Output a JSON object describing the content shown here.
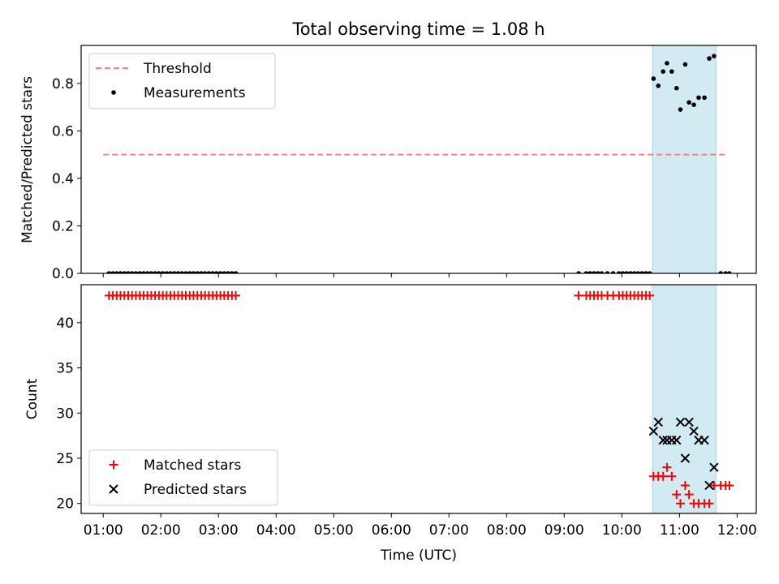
{
  "chart_data": [
    {
      "type": "scatter",
      "title": "Total observing time = 1.08 h",
      "ylabel": "Matched/Predicted stars",
      "xlabel": "",
      "xlim": [
        "00:37",
        "12:20"
      ],
      "ylim": [
        0,
        0.96
      ],
      "x_ticks": [
        "01:00",
        "02:00",
        "03:00",
        "04:00",
        "05:00",
        "06:00",
        "07:00",
        "08:00",
        "09:00",
        "10:00",
        "11:00",
        "12:00"
      ],
      "y_ticks": [
        "0.0",
        "0.2",
        "0.4",
        "0.6",
        "0.8"
      ],
      "highlight_span": [
        "10:32",
        "11:38"
      ],
      "legend": {
        "position": "upper left",
        "entries": [
          "Threshold",
          "Measurements"
        ]
      },
      "series": [
        {
          "name": "Threshold",
          "style": "dashed-line",
          "color": "#ff8080",
          "points": [
            [
              "01:00",
              0.5
            ],
            [
              "11:50",
              0.5
            ]
          ]
        },
        {
          "name": "Measurements",
          "style": "dot",
          "color": "#000000",
          "points": [
            [
              "01:06",
              0
            ],
            [
              "01:10",
              0
            ],
            [
              "01:14",
              0
            ],
            [
              "01:18",
              0
            ],
            [
              "01:22",
              0
            ],
            [
              "01:26",
              0
            ],
            [
              "01:30",
              0
            ],
            [
              "01:34",
              0
            ],
            [
              "01:38",
              0
            ],
            [
              "01:42",
              0
            ],
            [
              "01:46",
              0
            ],
            [
              "01:50",
              0
            ],
            [
              "01:54",
              0
            ],
            [
              "01:58",
              0
            ],
            [
              "02:02",
              0
            ],
            [
              "02:06",
              0
            ],
            [
              "02:10",
              0
            ],
            [
              "02:14",
              0
            ],
            [
              "02:18",
              0
            ],
            [
              "02:22",
              0
            ],
            [
              "02:26",
              0
            ],
            [
              "02:30",
              0
            ],
            [
              "02:34",
              0
            ],
            [
              "02:38",
              0
            ],
            [
              "02:42",
              0
            ],
            [
              "02:46",
              0
            ],
            [
              "02:50",
              0
            ],
            [
              "02:54",
              0
            ],
            [
              "02:58",
              0
            ],
            [
              "03:02",
              0
            ],
            [
              "03:06",
              0
            ],
            [
              "03:10",
              0
            ],
            [
              "03:14",
              0
            ],
            [
              "03:18",
              0
            ],
            [
              "09:15",
              0
            ],
            [
              "09:23",
              0
            ],
            [
              "09:27",
              0
            ],
            [
              "09:31",
              0
            ],
            [
              "09:35",
              0
            ],
            [
              "09:39",
              0
            ],
            [
              "09:45",
              0
            ],
            [
              "09:51",
              0
            ],
            [
              "09:57",
              0
            ],
            [
              "10:01",
              0
            ],
            [
              "10:05",
              0
            ],
            [
              "10:09",
              0
            ],
            [
              "10:13",
              0
            ],
            [
              "10:17",
              0
            ],
            [
              "10:21",
              0
            ],
            [
              "10:25",
              0
            ],
            [
              "10:29",
              0
            ],
            [
              "10:33",
              0.82
            ],
            [
              "10:38",
              0.79
            ],
            [
              "10:43",
              0.85
            ],
            [
              "10:47",
              0.885
            ],
            [
              "10:52",
              0.85
            ],
            [
              "10:57",
              0.78
            ],
            [
              "11:01",
              0.69
            ],
            [
              "11:06",
              0.88
            ],
            [
              "11:10",
              0.72
            ],
            [
              "11:15",
              0.71
            ],
            [
              "11:20",
              0.74
            ],
            [
              "11:26",
              0.74
            ],
            [
              "11:31",
              0.905
            ],
            [
              "11:36",
              0.915
            ],
            [
              "11:43",
              0
            ],
            [
              "11:48",
              0
            ],
            [
              "11:52",
              0
            ]
          ]
        }
      ]
    },
    {
      "type": "scatter",
      "title": "",
      "ylabel": "Count",
      "xlabel": "Time (UTC)",
      "xlim": [
        "00:37",
        "12:20"
      ],
      "ylim": [
        18.9,
        44.2
      ],
      "x_ticks": [
        "01:00",
        "02:00",
        "03:00",
        "04:00",
        "05:00",
        "06:00",
        "07:00",
        "08:00",
        "09:00",
        "10:00",
        "11:00",
        "12:00"
      ],
      "y_ticks": [
        "20",
        "25",
        "30",
        "35",
        "40"
      ],
      "highlight_span": [
        "10:32",
        "11:38"
      ],
      "legend": {
        "position": "lower left",
        "entries": [
          "Matched stars",
          "Predicted stars"
        ]
      },
      "series": [
        {
          "name": "Matched stars",
          "style": "plus",
          "color": "#ff0000",
          "points": [
            [
              "01:06",
              43
            ],
            [
              "01:10",
              43
            ],
            [
              "01:14",
              43
            ],
            [
              "01:18",
              43
            ],
            [
              "01:22",
              43
            ],
            [
              "01:26",
              43
            ],
            [
              "01:30",
              43
            ],
            [
              "01:34",
              43
            ],
            [
              "01:38",
              43
            ],
            [
              "01:42",
              43
            ],
            [
              "01:46",
              43
            ],
            [
              "01:50",
              43
            ],
            [
              "01:54",
              43
            ],
            [
              "01:58",
              43
            ],
            [
              "02:02",
              43
            ],
            [
              "02:06",
              43
            ],
            [
              "02:10",
              43
            ],
            [
              "02:14",
              43
            ],
            [
              "02:18",
              43
            ],
            [
              "02:22",
              43
            ],
            [
              "02:26",
              43
            ],
            [
              "02:30",
              43
            ],
            [
              "02:34",
              43
            ],
            [
              "02:38",
              43
            ],
            [
              "02:42",
              43
            ],
            [
              "02:46",
              43
            ],
            [
              "02:50",
              43
            ],
            [
              "02:54",
              43
            ],
            [
              "02:58",
              43
            ],
            [
              "03:02",
              43
            ],
            [
              "03:06",
              43
            ],
            [
              "03:10",
              43
            ],
            [
              "03:14",
              43
            ],
            [
              "03:18",
              43
            ],
            [
              "09:15",
              43
            ],
            [
              "09:23",
              43
            ],
            [
              "09:27",
              43
            ],
            [
              "09:31",
              43
            ],
            [
              "09:35",
              43
            ],
            [
              "09:39",
              43
            ],
            [
              "09:45",
              43
            ],
            [
              "09:51",
              43
            ],
            [
              "09:57",
              43
            ],
            [
              "10:01",
              43
            ],
            [
              "10:05",
              43
            ],
            [
              "10:09",
              43
            ],
            [
              "10:13",
              43
            ],
            [
              "10:17",
              43
            ],
            [
              "10:21",
              43
            ],
            [
              "10:25",
              43
            ],
            [
              "10:29",
              43
            ],
            [
              "10:33",
              23
            ],
            [
              "10:38",
              23
            ],
            [
              "10:43",
              23
            ],
            [
              "10:47",
              24
            ],
            [
              "10:52",
              23
            ],
            [
              "10:57",
              21
            ],
            [
              "11:01",
              20
            ],
            [
              "11:06",
              22
            ],
            [
              "11:10",
              21
            ],
            [
              "11:15",
              20
            ],
            [
              "11:20",
              20
            ],
            [
              "11:26",
              20
            ],
            [
              "11:31",
              20
            ],
            [
              "11:36",
              22
            ],
            [
              "11:43",
              22
            ],
            [
              "11:48",
              22
            ],
            [
              "11:52",
              22
            ]
          ]
        },
        {
          "name": "Predicted stars",
          "style": "x",
          "color": "#000000",
          "points": [
            [
              "10:33",
              28
            ],
            [
              "10:38",
              29
            ],
            [
              "10:43",
              27
            ],
            [
              "10:47",
              27
            ],
            [
              "10:52",
              27
            ],
            [
              "10:57",
              27
            ],
            [
              "11:01",
              29
            ],
            [
              "11:06",
              25
            ],
            [
              "11:10",
              29
            ],
            [
              "11:15",
              28
            ],
            [
              "11:20",
              27
            ],
            [
              "11:26",
              27
            ],
            [
              "11:31",
              22
            ],
            [
              "11:36",
              24
            ]
          ]
        }
      ]
    }
  ]
}
